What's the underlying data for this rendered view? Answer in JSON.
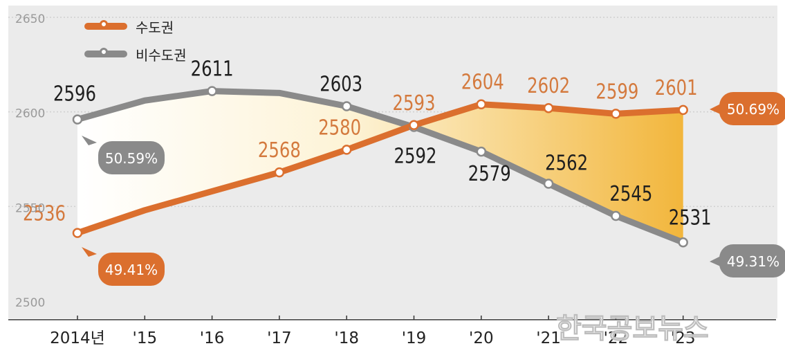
{
  "colors": {
    "capital": "#db6f2e",
    "non_capital": "#8a8a8a",
    "capital_text": "#d47a3e",
    "non_capital_text": "#1f1f1f",
    "plot_bg": "#ebebeb",
    "fill": "#f2b63c"
  },
  "legend": [
    {
      "label": "수도권",
      "color_key": "capital"
    },
    {
      "label": "비수도권",
      "color_key": "non_capital"
    }
  ],
  "chart_data": {
    "type": "line",
    "x": [
      "2014년",
      "'15",
      "'16",
      "'17",
      "'18",
      "'19",
      "'20",
      "'21",
      "'22",
      "'23"
    ],
    "ylim": [
      2500,
      2650
    ],
    "yticks": [
      2650,
      2600,
      2550,
      2500
    ],
    "grid": true,
    "legend_position": "top-left",
    "series": [
      {
        "name": "수도권",
        "values": [
          2536,
          2548,
          2558,
          2568,
          2580,
          2593,
          2604,
          2602,
          2599,
          2601
        ],
        "labels": [
          "2536",
          null,
          null,
          "2568",
          "2580",
          "2593",
          "2604",
          "2602",
          "2599",
          "2601"
        ]
      },
      {
        "name": "비수도권",
        "values": [
          2596,
          2606,
          2611,
          2610,
          2603,
          2592,
          2579,
          2562,
          2545,
          2531
        ],
        "labels": [
          "2596",
          null,
          "2611",
          null,
          "2603",
          "2592",
          "2579",
          "2562",
          "2545",
          "2531"
        ]
      }
    ],
    "share_callouts": [
      {
        "text": "50.59%",
        "series": 1,
        "index": 0
      },
      {
        "text": "49.41%",
        "series": 0,
        "index": 0
      },
      {
        "text": "50.69%",
        "series": 0,
        "index": 9
      },
      {
        "text": "49.31%",
        "series": 1,
        "index": 9
      }
    ],
    "watermark": "한국공보뉴스"
  }
}
